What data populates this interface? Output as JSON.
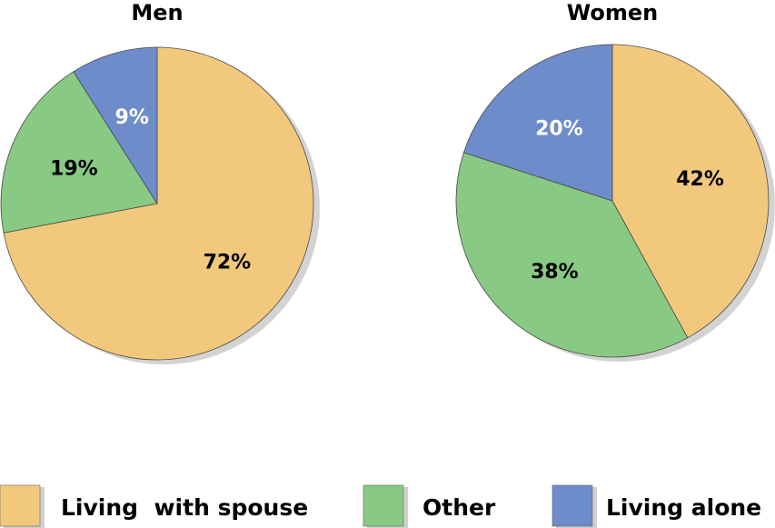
{
  "chart_data": {
    "type": "pie",
    "legend": {
      "placement": "bottom",
      "entries": [
        {
          "label": "Living  with spouse",
          "color": "#f2c97c"
        },
        {
          "label": "Other",
          "color": "#88c983"
        },
        {
          "label": "Living alone",
          "color": "#6d8cc9"
        }
      ]
    },
    "charts": [
      {
        "title": "Men",
        "slices": [
          {
            "name": "Living  with spouse",
            "value": 72,
            "label": "72%",
            "color": "#f2c97c",
            "label_color": "#000000"
          },
          {
            "name": "Other",
            "value": 19,
            "label": "19%",
            "color": "#88c983",
            "label_color": "#000000"
          },
          {
            "name": "Living alone",
            "value": 9,
            "label": "9%",
            "color": "#6d8cc9",
            "label_color": "#ffffff"
          }
        ]
      },
      {
        "title": "Women",
        "slices": [
          {
            "name": "Living  with spouse",
            "value": 42,
            "label": "42%",
            "color": "#f2c97c",
            "label_color": "#000000"
          },
          {
            "name": "Other",
            "value": 38,
            "label": "38%",
            "color": "#88c983",
            "label_color": "#000000"
          },
          {
            "name": "Living alone",
            "value": 20,
            "label": "20%",
            "color": "#6d8cc9",
            "label_color": "#ffffff"
          }
        ]
      }
    ]
  }
}
